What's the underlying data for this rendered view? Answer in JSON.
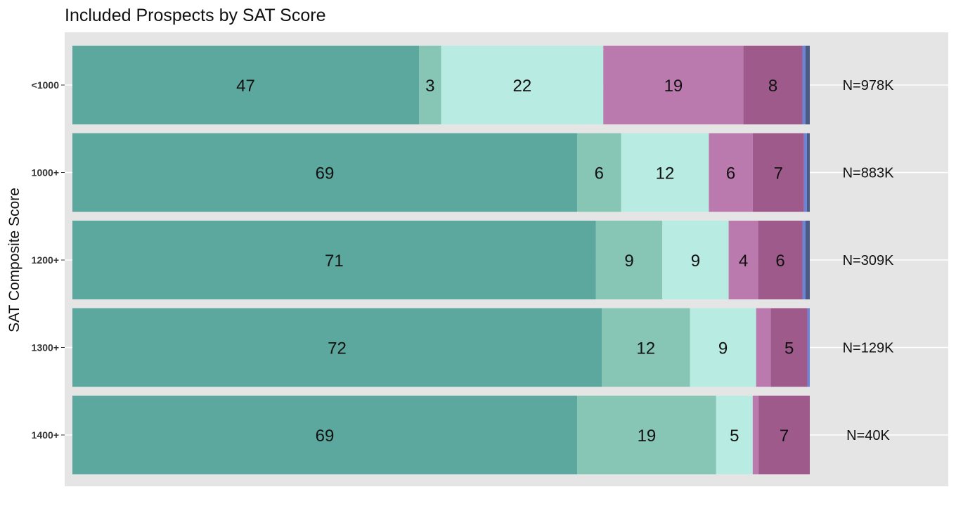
{
  "chart_data": {
    "type": "bar",
    "orientation": "horizontal",
    "stacked": true,
    "title": "Included Prospects by SAT Score",
    "ylabel": "SAT Composite Score",
    "xlabel": "",
    "legend": "none",
    "grid": true,
    "categories": [
      "<1000",
      "1000+",
      "1200+",
      "1300+",
      "1400+"
    ],
    "n_labels": [
      "N=978K",
      "N=883K",
      "N=309K",
      "N=129K",
      "N=40K"
    ],
    "colors": [
      "#5ca89e",
      "#87c5b4",
      "#b8ebe2",
      "#bb7aae",
      "#9d5a8a",
      "#6b84d8",
      "#4b5a84"
    ],
    "rows": [
      {
        "values": [
          47,
          3,
          22,
          19,
          8,
          0.4,
          0.6
        ],
        "labels": [
          "47",
          "3",
          "22",
          "19",
          "8",
          "",
          ""
        ]
      },
      {
        "values": [
          69,
          6,
          12,
          6,
          7,
          0.4,
          0.4
        ],
        "labels": [
          "69",
          "6",
          "12",
          "6",
          "7",
          "",
          ""
        ]
      },
      {
        "values": [
          71,
          9,
          9,
          4,
          6,
          0.4,
          0.6
        ],
        "labels": [
          "71",
          "9",
          "9",
          "4",
          "6",
          "",
          ""
        ]
      },
      {
        "values": [
          72,
          12,
          9,
          2,
          5,
          0.3,
          0
        ],
        "labels": [
          "72",
          "12",
          "9",
          "",
          "5",
          "",
          ""
        ]
      },
      {
        "values": [
          69,
          19,
          5,
          0.8,
          7,
          0,
          0
        ],
        "labels": [
          "69",
          "19",
          "5",
          "",
          "7",
          "",
          ""
        ]
      }
    ]
  }
}
